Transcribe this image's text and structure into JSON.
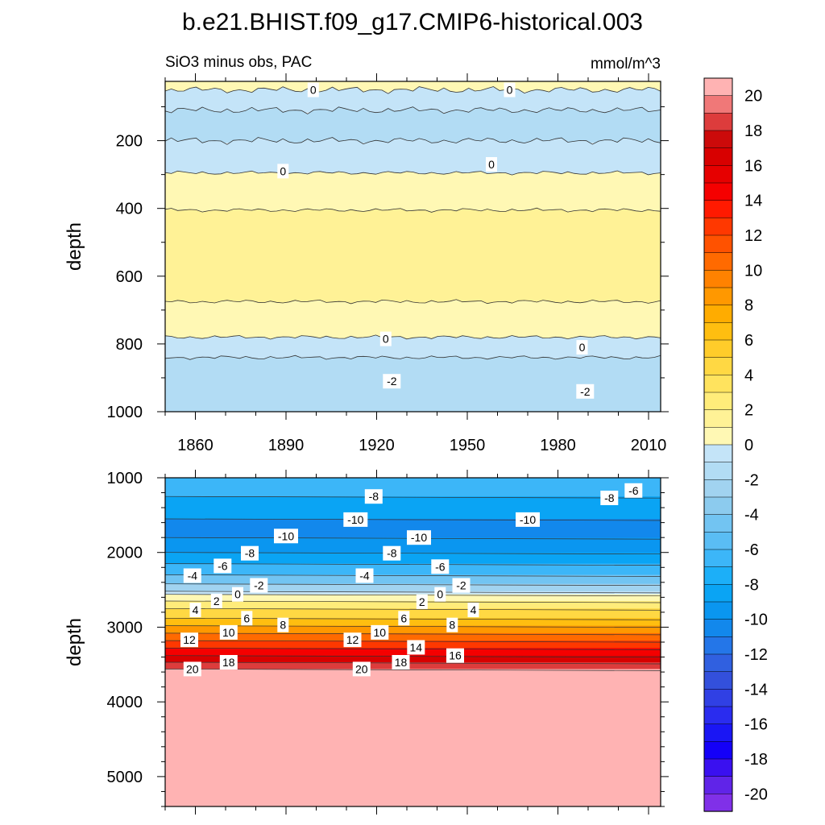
{
  "title": "b.e21.BHIST.f09_g17.CMIP6-historical.003",
  "subtitle_left": "SiO3 minus obs, PAC",
  "subtitle_right": "mmol/m^3",
  "chart_data": [
    {
      "type": "heatmap",
      "name": "upper-panel",
      "ylabel": "depth",
      "ylim": [
        1000,
        25
      ],
      "xlim": [
        1850,
        2014
      ],
      "yticks": [
        200,
        400,
        600,
        800,
        1000
      ],
      "xticks": [
        1860,
        1890,
        1920,
        1950,
        1980,
        2010
      ],
      "bands": [
        {
          "depth_top": 25,
          "depth_bottom": 50,
          "value": 0.5
        },
        {
          "depth_top": 50,
          "depth_bottom": 110,
          "value": -0.5
        },
        {
          "depth_top": 110,
          "depth_bottom": 200,
          "value": -1.5
        },
        {
          "depth_top": 200,
          "depth_bottom": 295,
          "value": -0.5
        },
        {
          "depth_top": 295,
          "depth_bottom": 405,
          "value": 0.5
        },
        {
          "depth_top": 405,
          "depth_bottom": 675,
          "value": 1.5
        },
        {
          "depth_top": 675,
          "depth_bottom": 780,
          "value": 0.5
        },
        {
          "depth_top": 780,
          "depth_bottom": 840,
          "value": -0.5
        },
        {
          "depth_top": 840,
          "depth_bottom": 1000,
          "value": -1.5
        }
      ],
      "contour_labels": [
        {
          "text": "0",
          "x": 1899,
          "depth": 50
        },
        {
          "text": "0",
          "x": 1964,
          "depth": 50
        },
        {
          "text": "0",
          "x": 1889,
          "depth": 290
        },
        {
          "text": "0",
          "x": 1958,
          "depth": 270
        },
        {
          "text": "0",
          "x": 1923,
          "depth": 785
        },
        {
          "text": "0",
          "x": 1988,
          "depth": 810
        },
        {
          "text": "-2",
          "x": 1925,
          "depth": 910
        },
        {
          "text": "-2",
          "x": 1989,
          "depth": 940
        }
      ]
    },
    {
      "type": "heatmap",
      "name": "lower-panel",
      "ylabel": "depth",
      "ylim": [
        5400,
        1000
      ],
      "xlim": [
        1850,
        2014
      ],
      "yticks": [
        1000,
        2000,
        3000,
        4000,
        5000
      ],
      "profile": [
        {
          "depth": 1000,
          "value": -6.5
        },
        {
          "depth": 1250,
          "value": -8.5
        },
        {
          "depth": 1550,
          "value": -10.5
        },
        {
          "depth": 1800,
          "value": -9.5
        },
        {
          "depth": 2000,
          "value": -8.5
        },
        {
          "depth": 2150,
          "value": -6.5
        },
        {
          "depth": 2300,
          "value": -4.5
        },
        {
          "depth": 2420,
          "value": -2.5
        },
        {
          "depth": 2520,
          "value": -0.5
        },
        {
          "depth": 2560,
          "value": 0.5
        },
        {
          "depth": 2650,
          "value": 2.5
        },
        {
          "depth": 2750,
          "value": 4.5
        },
        {
          "depth": 2880,
          "value": 6.5
        },
        {
          "depth": 2980,
          "value": 8.5
        },
        {
          "depth": 3080,
          "value": 10.5
        },
        {
          "depth": 3180,
          "value": 12.5
        },
        {
          "depth": 3280,
          "value": 14.5
        },
        {
          "depth": 3380,
          "value": 16.5
        },
        {
          "depth": 3470,
          "value": 18.5
        },
        {
          "depth": 3560,
          "value": 20.5
        },
        {
          "depth": 5400,
          "value": 20.5
        }
      ],
      "contour_labels": [
        {
          "text": "-6",
          "x": 2005,
          "depth": 1170
        },
        {
          "text": "-8",
          "x": 1919,
          "depth": 1250
        },
        {
          "text": "-8",
          "x": 1997,
          "depth": 1270
        },
        {
          "text": "-10",
          "x": 1913,
          "depth": 1560
        },
        {
          "text": "-10",
          "x": 1970,
          "depth": 1560
        },
        {
          "text": "-10",
          "x": 1890,
          "depth": 1780
        },
        {
          "text": "-10",
          "x": 1934,
          "depth": 1800
        },
        {
          "text": "-8",
          "x": 1878,
          "depth": 2010
        },
        {
          "text": "-8",
          "x": 1925,
          "depth": 2010
        },
        {
          "text": "-6",
          "x": 1869,
          "depth": 2180
        },
        {
          "text": "-6",
          "x": 1941,
          "depth": 2190
        },
        {
          "text": "-4",
          "x": 1859,
          "depth": 2310
        },
        {
          "text": "-4",
          "x": 1916,
          "depth": 2310
        },
        {
          "text": "-2",
          "x": 1881,
          "depth": 2440
        },
        {
          "text": "-2",
          "x": 1948,
          "depth": 2440
        },
        {
          "text": "0",
          "x": 1874,
          "depth": 2560
        },
        {
          "text": "0",
          "x": 1941,
          "depth": 2560
        },
        {
          "text": "2",
          "x": 1867,
          "depth": 2650
        },
        {
          "text": "2",
          "x": 1935,
          "depth": 2660
        },
        {
          "text": "4",
          "x": 1860,
          "depth": 2770
        },
        {
          "text": "4",
          "x": 1952,
          "depth": 2770
        },
        {
          "text": "6",
          "x": 1877,
          "depth": 2880
        },
        {
          "text": "6",
          "x": 1929,
          "depth": 2880
        },
        {
          "text": "8",
          "x": 1889,
          "depth": 2970
        },
        {
          "text": "8",
          "x": 1945,
          "depth": 2970
        },
        {
          "text": "10",
          "x": 1871,
          "depth": 3070
        },
        {
          "text": "10",
          "x": 1921,
          "depth": 3070
        },
        {
          "text": "12",
          "x": 1858,
          "depth": 3170
        },
        {
          "text": "12",
          "x": 1912,
          "depth": 3170
        },
        {
          "text": "14",
          "x": 1933,
          "depth": 3270
        },
        {
          "text": "16",
          "x": 1946,
          "depth": 3380
        },
        {
          "text": "18",
          "x": 1871,
          "depth": 3470
        },
        {
          "text": "18",
          "x": 1928,
          "depth": 3470
        },
        {
          "text": "20",
          "x": 1859,
          "depth": 3560
        },
        {
          "text": "20",
          "x": 1915,
          "depth": 3560
        }
      ]
    },
    {
      "type": "colorbar",
      "name": "colorbar",
      "min": -21,
      "max": 21,
      "step": 1,
      "tick_labels": [
        "20",
        "18",
        "16",
        "14",
        "12",
        "10",
        "8",
        "6",
        "4",
        "2",
        "0",
        "-2",
        "-4",
        "-6",
        "-8",
        "-10",
        "-12",
        "-14",
        "-16",
        "-18",
        "-20"
      ],
      "colors": [
        "#ffb3b3",
        "#f07878",
        "#dd3c3c",
        "#cc0a0a",
        "#d80000",
        "#e60000",
        "#f50000",
        "#ff1a00",
        "#ff3800",
        "#ff5200",
        "#ff6a00",
        "#ff8200",
        "#ff9800",
        "#ffac00",
        "#ffbe10",
        "#ffcc2a",
        "#ffd843",
        "#ffe35e",
        "#ffec7a",
        "#fff296",
        "#fff8b4",
        "#c4e4f8",
        "#b2dcf4",
        "#a1d3f0",
        "#8ccbee",
        "#72c4f2",
        "#5abdf4",
        "#3cb6f8",
        "#1caff8",
        "#0aa4f4",
        "#0a96f0",
        "#1288ec",
        "#2476e8",
        "#3060e0",
        "#3350dc",
        "#3040e4",
        "#2a2cef",
        "#1a16f4",
        "#1400f8",
        "#3a10f0",
        "#6024e8",
        "#8030e8"
      ]
    }
  ]
}
